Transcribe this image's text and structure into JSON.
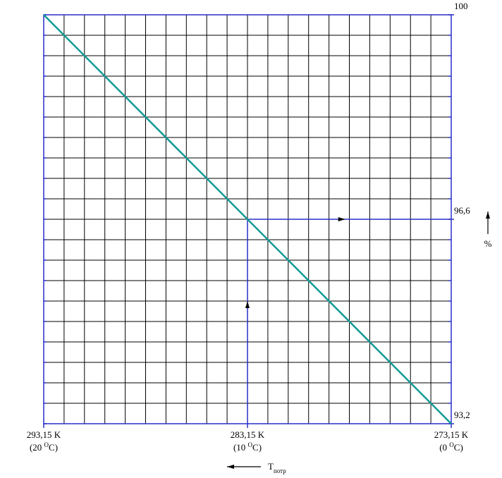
{
  "chart_data": {
    "type": "line",
    "x": [
      293.15,
      273.15
    ],
    "series": [
      {
        "name": null,
        "color": "#139b94",
        "values": [
          100,
          93.2
        ]
      }
    ],
    "guide": {
      "color": "#2a2fc8",
      "x": [
        283.15,
        283.15,
        273.15
      ],
      "values": [
        93.2,
        96.6,
        96.6
      ]
    },
    "xlim": [
      293.15,
      273.15
    ],
    "ylim": [
      93.2,
      100
    ],
    "xticks": [
      {
        "value": 293.15,
        "label": "293,15 K"
      },
      {
        "value": 283.15,
        "label": "283,15 K"
      },
      {
        "value": 273.15,
        "label": "273,15 K"
      }
    ],
    "xtick_sublabels": [
      [
        "(20 ",
        "O",
        "C)"
      ],
      [
        "(10 ",
        "O",
        "C)"
      ],
      [
        "(0 ",
        "O",
        "C)"
      ]
    ],
    "yticks": [
      {
        "value": 100,
        "label": "100"
      },
      {
        "value": 96.6,
        "label": "96,6"
      },
      {
        "value": 93.2,
        "label": "93,2"
      }
    ],
    "xgrid": [
      273.15,
      274.15,
      275.15,
      276.15,
      277.15,
      278.15,
      279.15,
      280.15,
      281.15,
      282.15,
      283.15,
      284.15,
      285.15,
      286.15,
      287.15,
      288.15,
      289.15,
      290.15,
      291.15,
      292.15,
      293.15
    ],
    "ygrid": [
      93.2,
      93.54,
      93.88,
      94.22,
      94.56,
      94.9,
      95.24,
      95.58,
      95.92,
      96.26,
      96.6,
      96.94,
      97.28,
      97.62,
      97.96,
      98.3,
      98.64,
      98.98,
      99.32,
      99.66,
      100
    ],
    "grid": true,
    "xlabel": "T",
    "xlabel_sub": "потр",
    "ylabel": "%"
  }
}
